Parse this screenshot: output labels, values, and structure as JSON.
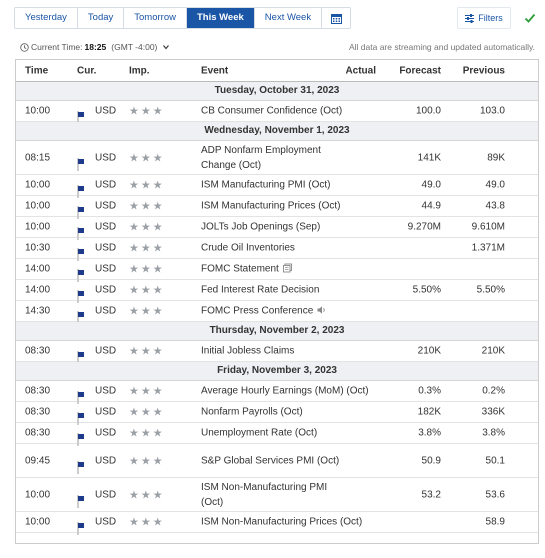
{
  "toolbar": {
    "tabs": [
      {
        "label": "Yesterday",
        "active": false
      },
      {
        "label": "Today",
        "active": false
      },
      {
        "label": "Tomorrow",
        "active": false
      },
      {
        "label": "This Week",
        "active": true
      },
      {
        "label": "Next Week",
        "active": false
      }
    ],
    "calendar_icon": "calendar-icon",
    "filters_label": "Filters",
    "filter_icon": "sliders-icon",
    "status_icon": "check-icon",
    "colors": {
      "accent": "#1a55a6",
      "check": "#2e9d3a"
    }
  },
  "time_info": {
    "label": "Current Time:",
    "time": "18:25",
    "zone": "(GMT -4:00)",
    "notice": "All data are streaming and updated automatically."
  },
  "table": {
    "headers": {
      "time": "Time",
      "cur": "Cur.",
      "imp": "Imp.",
      "event": "Event",
      "actual": "Actual",
      "forecast": "Forecast",
      "previous": "Previous"
    },
    "rows": [
      {
        "type": "date",
        "label": "Tuesday, October 31, 2023"
      },
      {
        "type": "event",
        "time": "10:00",
        "cur": "USD",
        "event": "CB Consumer Confidence (Oct)",
        "actual": "",
        "forecast": "100.0",
        "previous": "103.0"
      },
      {
        "type": "date",
        "label": "Wednesday, November 1, 2023"
      },
      {
        "type": "event",
        "time": "08:15",
        "cur": "USD",
        "event": "ADP Nonfarm Employment Change (Oct)",
        "actual": "",
        "forecast": "141K",
        "previous": "89K"
      },
      {
        "type": "event",
        "time": "10:00",
        "cur": "USD",
        "event": "ISM Manufacturing PMI (Oct)",
        "actual": "",
        "forecast": "49.0",
        "previous": "49.0"
      },
      {
        "type": "event",
        "time": "10:00",
        "cur": "USD",
        "event": "ISM Manufacturing Prices (Oct)",
        "actual": "",
        "forecast": "44.9",
        "previous": "43.8"
      },
      {
        "type": "event",
        "time": "10:00",
        "cur": "USD",
        "event": "JOLTs Job Openings (Sep)",
        "actual": "",
        "forecast": "9.270M",
        "previous": "9.610M"
      },
      {
        "type": "event",
        "time": "10:30",
        "cur": "USD",
        "event": "Crude Oil Inventories",
        "actual": "",
        "forecast": "",
        "previous": "1.371M"
      },
      {
        "type": "event",
        "time": "14:00",
        "cur": "USD",
        "event": "FOMC Statement",
        "icon": "document-icon",
        "actual": "",
        "forecast": "",
        "previous": ""
      },
      {
        "type": "event",
        "time": "14:00",
        "cur": "USD",
        "event": "Fed Interest Rate Decision",
        "actual": "",
        "forecast": "5.50%",
        "previous": "5.50%"
      },
      {
        "type": "event",
        "time": "14:30",
        "cur": "USD",
        "event": "FOMC Press Conference",
        "icon": "speaker-icon",
        "actual": "",
        "forecast": "",
        "previous": ""
      },
      {
        "type": "date",
        "label": "Thursday, November 2, 2023"
      },
      {
        "type": "event",
        "time": "08:30",
        "cur": "USD",
        "event": "Initial Jobless Claims",
        "actual": "",
        "forecast": "210K",
        "previous": "210K"
      },
      {
        "type": "date",
        "label": "Friday, November 3, 2023"
      },
      {
        "type": "event",
        "time": "08:30",
        "cur": "USD",
        "event": "Average Hourly Earnings (MoM) (Oct)",
        "actual": "",
        "forecast": "0.3%",
        "previous": "0.2%"
      },
      {
        "type": "event",
        "time": "08:30",
        "cur": "USD",
        "event": "Nonfarm Payrolls (Oct)",
        "actual": "",
        "forecast": "182K",
        "previous": "336K"
      },
      {
        "type": "event",
        "time": "08:30",
        "cur": "USD",
        "event": "Unemployment Rate (Oct)",
        "actual": "",
        "forecast": "3.8%",
        "previous": "3.8%"
      },
      {
        "type": "event",
        "time": "09:45",
        "cur": "USD",
        "event": "S&P Global Services PMI (Oct)",
        "actual": "",
        "forecast": "50.9",
        "previous": "50.1"
      },
      {
        "type": "event",
        "time": "10:00",
        "cur": "USD",
        "event": "ISM Non-Manufacturing PMI (Oct)",
        "actual": "",
        "forecast": "53.2",
        "previous": "53.6"
      },
      {
        "type": "event",
        "time": "10:00",
        "cur": "USD",
        "event": "ISM Non-Manufacturing Prices (Oct)",
        "actual": "",
        "forecast": "",
        "previous": "58.9"
      }
    ]
  }
}
